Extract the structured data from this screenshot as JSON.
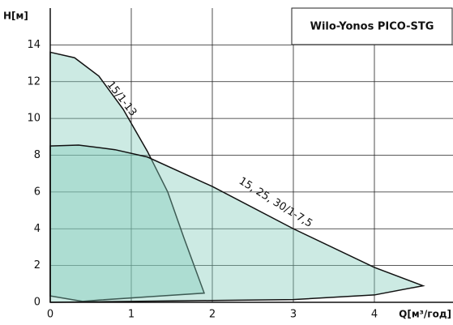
{
  "chart_data": {
    "type": "area",
    "title": "Wilo-Yonos PICO-STG",
    "x_label": "Q[м³/год]",
    "y_label": "H[м]",
    "xlim": [
      0,
      4.97
    ],
    "ylim": [
      0,
      16
    ],
    "xticks": [
      0,
      1,
      2,
      3,
      4
    ],
    "yticks": [
      0,
      2,
      4,
      6,
      8,
      10,
      12,
      14
    ],
    "grid": true,
    "series": [
      {
        "name": "15/1-13",
        "color": "#7fcbb8",
        "x": [
          0,
          0.3,
          0.6,
          0.9,
          1.2,
          1.45,
          1.65,
          1.9,
          1.2,
          0.6,
          0.4,
          0.2,
          0
        ],
        "values": [
          13.6,
          13.3,
          12.3,
          10.5,
          8.2,
          6,
          3.5,
          0.5,
          0.3,
          0.12,
          0.05,
          0.2,
          0.35
        ]
      },
      {
        "name": "15, 25, 30/1-7,5",
        "color": "#7fcbb8",
        "x": [
          0,
          0.35,
          0.8,
          1.2,
          2,
          3,
          4,
          4.6,
          4,
          3,
          2,
          1,
          0
        ],
        "values": [
          8.5,
          8.55,
          8.3,
          7.9,
          6.3,
          4,
          1.9,
          0.9,
          0.4,
          0.15,
          0.1,
          0.05,
          0
        ]
      }
    ]
  }
}
